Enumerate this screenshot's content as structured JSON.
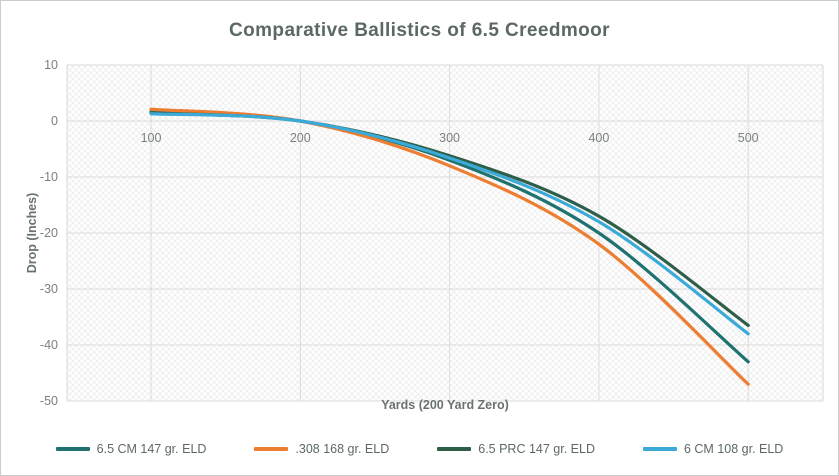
{
  "window": {
    "border_color": "#c9cdcd",
    "background": "#ffffff"
  },
  "colors": {
    "title_text": "#5c6866",
    "axis_title_text": "#68726f",
    "tick_text": "#7a8080",
    "legend_text": "#5c6866",
    "gridline": "#dbdbdb",
    "plot_edge": "#d9d9d9",
    "hatch": "#e9e9e9"
  },
  "chart_data": {
    "type": "line",
    "title": "Comparative Ballistics of 6.5 Creedmoor",
    "xlabel": "Yards (200 Yard Zero)",
    "ylabel": "Drop (Inches)",
    "categories": [
      100,
      200,
      300,
      400,
      500
    ],
    "yticks": [
      10,
      0,
      -10,
      -20,
      -30,
      -40,
      -50
    ],
    "ylim": [
      -50,
      10
    ],
    "grid": true,
    "plot_background": "diagonal-crosshatch",
    "legend_position": "bottom",
    "series": [
      {
        "name": "6.5 CM 147 gr. ELD",
        "color": "#1f7270",
        "values": [
          1.6,
          0,
          -7.0,
          -20.0,
          -43.0
        ]
      },
      {
        "name": ".308 168 gr. ELD",
        "color": "#ed7d31",
        "values": [
          2.1,
          0,
          -8.0,
          -22.0,
          -47.0
        ]
      },
      {
        "name": "6.5 PRC 147 gr. ELD",
        "color": "#2f5e48",
        "values": [
          1.4,
          0,
          -6.2,
          -17.0,
          -36.5
        ]
      },
      {
        "name": "6 CM 108 gr. ELD",
        "color": "#3baad9",
        "values": [
          1.3,
          0,
          -6.6,
          -18.0,
          -38.0
        ]
      }
    ]
  }
}
